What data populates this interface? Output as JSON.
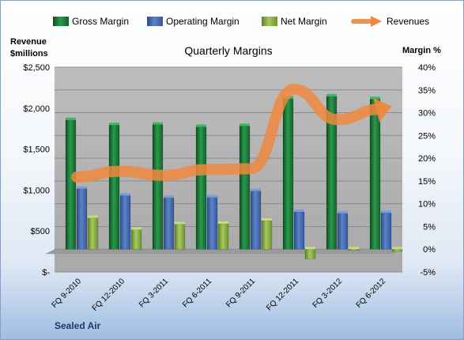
{
  "chart_data": {
    "type": "bar",
    "title": "Quarterly Margins",
    "left_axis_title": [
      "Revenue",
      "$millions"
    ],
    "right_axis_title": "Margin %",
    "left_axis": {
      "ticks": [
        "$-",
        "$500",
        "$1,000",
        "$1,500",
        "$2,000",
        "$2,500"
      ],
      "range": [
        0,
        2500
      ]
    },
    "right_axis": {
      "ticks": [
        "-5%",
        "0%",
        "5%",
        "10%",
        "15%",
        "20%",
        "25%",
        "30%",
        "35%",
        "40%"
      ],
      "range": [
        -5,
        40
      ]
    },
    "categories": [
      "FQ 9-2010",
      "FQ 12-2010",
      "FQ 3-2011",
      "FQ 6-2011",
      "FQ 9-2011",
      "FQ 12-2011",
      "FQ 3-2012",
      "FQ 6-2012"
    ],
    "series": [
      {
        "name": "Gross Margin",
        "axis": "right",
        "values": [
          28.4,
          27.3,
          27.4,
          26.9,
          27.1,
          33.1,
          33.6,
          33.0
        ]
      },
      {
        "name": "Operating Margin",
        "axis": "right",
        "values": [
          13.3,
          11.8,
          11.3,
          11.4,
          12.8,
          8.2,
          7.9,
          8.0
        ]
      },
      {
        "name": "Net Margin",
        "axis": "right",
        "values": [
          6.9,
          4.3,
          5.5,
          5.6,
          6.3,
          -2.1,
          -0.2,
          -0.5
        ]
      },
      {
        "name": "Revenues",
        "type": "line",
        "axis": "left",
        "values": [
          1160,
          1230,
          1180,
          1250,
          1260,
          2230,
          1860,
          1990
        ]
      }
    ],
    "grid": true,
    "legend_position": "top",
    "colors": {
      "Gross Margin": "#1e7b3c",
      "Operating Margin": "#4a6fb0",
      "Net Margin": "#8fb74a",
      "Revenues": "#f0883e",
      "plot_background": "#b3b3b3"
    }
  },
  "footer_label": "Sealed Air"
}
